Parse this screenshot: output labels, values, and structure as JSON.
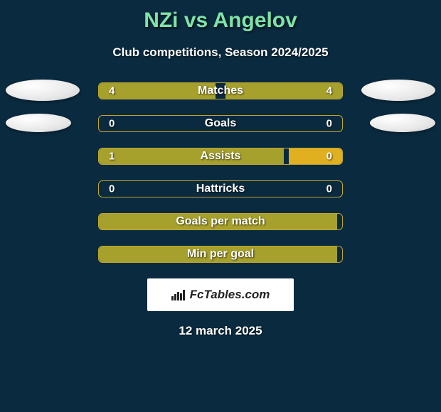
{
  "title": "NZi vs Angelov",
  "subtitle": "Club competitions, Season 2024/2025",
  "footer_date": "12 march 2025",
  "brand": "FcTables.com",
  "colors": {
    "background": "#0a2a3f",
    "title": "#7fe3a8",
    "text": "#ffffff",
    "bar_border": "#c0a630",
    "bar_fill_olive": "#a6a02d",
    "bar_fill_gold": "#e0b020"
  },
  "rows": [
    {
      "label": "Matches",
      "left_val": "4",
      "right_val": "4",
      "left_width_pct": 48,
      "right_width_pct": 48,
      "left_color": "#a6a02d",
      "right_color": "#a6a02d",
      "show_avatars": true,
      "avatar_class": "avatar-1"
    },
    {
      "label": "Goals",
      "left_val": "0",
      "right_val": "0",
      "left_width_pct": 0,
      "right_width_pct": 0,
      "left_color": "#a6a02d",
      "right_color": "#a6a02d",
      "show_avatars": true,
      "avatar_class": "avatar-2"
    },
    {
      "label": "Assists",
      "left_val": "1",
      "right_val": "0",
      "left_width_pct": 76,
      "right_width_pct": 22,
      "left_color": "#a6a02d",
      "right_color": "#e0b020",
      "show_avatars": false
    },
    {
      "label": "Hattricks",
      "left_val": "0",
      "right_val": "0",
      "left_width_pct": 0,
      "right_width_pct": 0,
      "left_color": "#a6a02d",
      "right_color": "#a6a02d",
      "show_avatars": false
    },
    {
      "label": "Goals per match",
      "left_val": "",
      "right_val": "",
      "left_width_pct": 98,
      "right_width_pct": 0,
      "left_color": "#a6a02d",
      "right_color": "#a6a02d",
      "show_avatars": false
    },
    {
      "label": "Min per goal",
      "left_val": "",
      "right_val": "",
      "left_width_pct": 98,
      "right_width_pct": 0,
      "left_color": "#a6a02d",
      "right_color": "#a6a02d",
      "show_avatars": false
    }
  ]
}
